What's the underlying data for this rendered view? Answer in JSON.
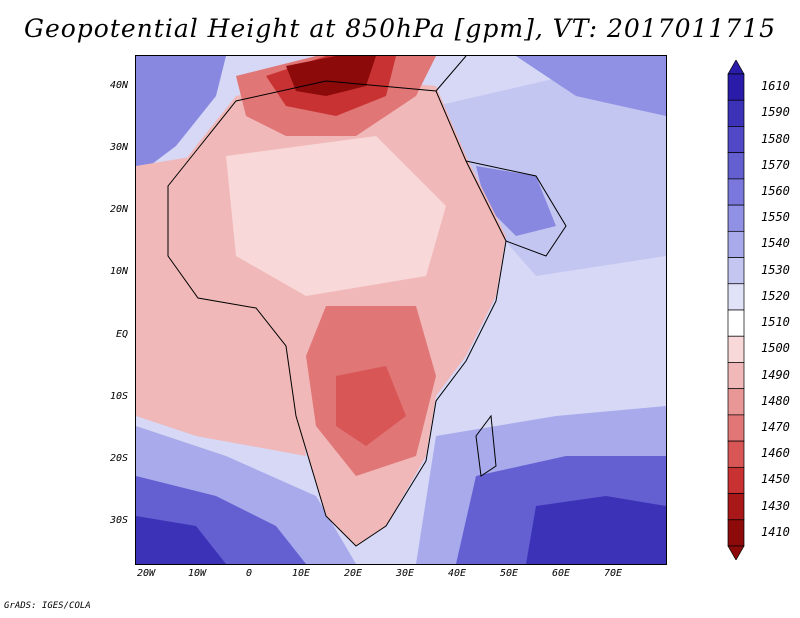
{
  "title": "Geopotential Height at 850hPa [gpm], VT: 2017011715",
  "footer": "GrADS: IGES/COLA",
  "lat_labels": [
    "40N",
    "30N",
    "20N",
    "10N",
    "EQ",
    "10S",
    "20S",
    "30S"
  ],
  "lon_labels": [
    "20W",
    "10W",
    "0",
    "10E",
    "20E",
    "30E",
    "40E",
    "50E",
    "60E",
    "70E"
  ],
  "colorbar": {
    "labels": [
      "1610",
      "1590",
      "1580",
      "1570",
      "1560",
      "1550",
      "1540",
      "1530",
      "1520",
      "1510",
      "1500",
      "1490",
      "1480",
      "1470",
      "1460",
      "1450",
      "1430",
      "1410"
    ],
    "colors": [
      "#2a1ca8",
      "#3c32b8",
      "#5048c6",
      "#6460d2",
      "#7a78dc",
      "#9090e4",
      "#a8aaec",
      "#c4c6f2",
      "#e0e2f8",
      "#ffffff",
      "#f8d8d8",
      "#f0b8b8",
      "#e89696",
      "#e07676",
      "#d85656",
      "#c83232",
      "#a81818",
      "#8c0a0a"
    ]
  },
  "map_colors": {
    "ocean_east": "#d6d8f6",
    "ocean_south": "#7a78dc",
    "ocean_deep": "#3c32b8",
    "north_med": "#8c0a0a",
    "land_pink": "#f0b8b8",
    "land_light": "#f8d8d8",
    "land_red": "#e07676",
    "atlantic": "#f0b8b8",
    "arabia": "#a8aaec",
    "sw_atlantic": "#7a78dc"
  }
}
